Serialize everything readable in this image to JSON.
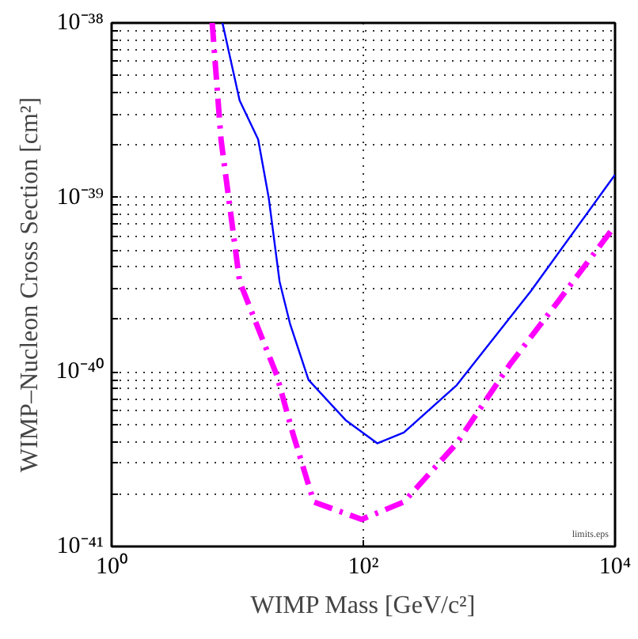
{
  "chart_data": {
    "type": "line",
    "xlabel": "WIMP Mass [GeV/c²]",
    "ylabel": "WIMP–Nucleon Cross Section [cm²]",
    "log": "xy",
    "grid": true,
    "xlim": [
      1,
      10000
    ],
    "ylim": [
      1e-41,
      1e-38
    ],
    "xticks": [
      {
        "value": 1,
        "label": "10⁰"
      },
      {
        "value": 100,
        "label": "10²"
      },
      {
        "value": 10000,
        "label": "10⁴"
      }
    ],
    "yticks": [
      {
        "value": 1e-41,
        "label": "10⁻⁴¹"
      },
      {
        "value": 2e-41,
        "label": null
      },
      {
        "value": 3e-41,
        "label": null
      },
      {
        "value": 4e-41,
        "label": null
      },
      {
        "value": 5e-41,
        "label": null
      },
      {
        "value": 6e-41,
        "label": null
      },
      {
        "value": 7e-41,
        "label": null
      },
      {
        "value": 8e-41,
        "label": null
      },
      {
        "value": 9e-41,
        "label": null
      },
      {
        "value": 1e-40,
        "label": "10⁻⁴⁰"
      },
      {
        "value": 2e-40,
        "label": null
      },
      {
        "value": 3e-40,
        "label": null
      },
      {
        "value": 4e-40,
        "label": null
      },
      {
        "value": 5e-40,
        "label": null
      },
      {
        "value": 6e-40,
        "label": null
      },
      {
        "value": 7e-40,
        "label": null
      },
      {
        "value": 8e-40,
        "label": null
      },
      {
        "value": 9e-40,
        "label": null
      },
      {
        "value": 1e-39,
        "label": "10⁻³⁹"
      },
      {
        "value": 2e-39,
        "label": null
      },
      {
        "value": 3e-39,
        "label": null
      },
      {
        "value": 4e-39,
        "label": null
      },
      {
        "value": 5e-39,
        "label": null
      },
      {
        "value": 6e-39,
        "label": null
      },
      {
        "value": 7e-39,
        "label": null
      },
      {
        "value": 8e-39,
        "label": null
      },
      {
        "value": 9e-39,
        "label": null
      },
      {
        "value": 1e-38,
        "label": "10⁻³⁸"
      }
    ],
    "series": [
      {
        "color": "#0000ff",
        "line_style": "solid",
        "x": [
          7.6,
          10.4,
          14.6,
          17.7,
          21.6,
          26.1,
          36.7,
          72.3,
          129,
          210,
          552,
          2140,
          10000
        ],
        "values": [
          1e-38,
          3.6e-39,
          2.15e-39,
          1e-39,
          3.3e-40,
          1.9e-40,
          9e-41,
          5.3e-41,
          3.9e-41,
          4.5e-41,
          8.4e-41,
          2.9e-40,
          1.35e-39
        ]
      },
      {
        "color": "#ff00ff",
        "line_style": "dashed",
        "x": [
          6.3,
          7.4,
          10.4,
          20.5,
          27.4,
          40.4,
          97,
          210,
          552,
          1456,
          3475,
          10000
        ],
        "values": [
          1e-38,
          2.15e-39,
          3.3e-40,
          9.6e-41,
          4.5e-41,
          1.8e-41,
          1.43e-41,
          1.8e-41,
          3.9e-41,
          1.1e-40,
          2.5e-40,
          6.9e-40
        ]
      }
    ],
    "annotations": [
      "limits.eps"
    ]
  }
}
